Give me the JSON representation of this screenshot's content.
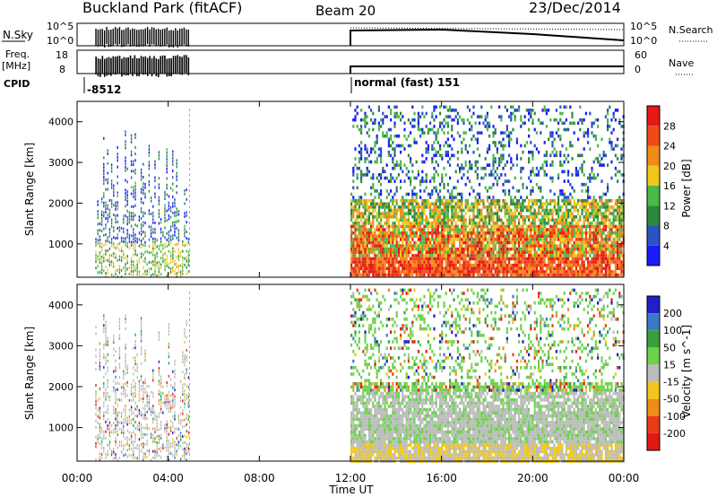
{
  "header": {
    "title": "Buckland Park (fitACF)",
    "beam": "Beam 20",
    "date": "23/Dec/2014"
  },
  "panels": {
    "nsky": {
      "left_label": "N.Sky",
      "right_label": "N.Search",
      "left_ticks": [
        "10^5",
        "10^0"
      ],
      "right_ticks": [
        "10^5",
        "10^0"
      ]
    },
    "freq": {
      "left_label": "Freq.",
      "left_unit": "[MHz]",
      "right_label": "Nave",
      "left_ticks": [
        "18",
        "8"
      ],
      "right_ticks": [
        "60",
        "0"
      ]
    },
    "cpid": {
      "label": "CPID",
      "value_1": "-8512",
      "value_2": "normal (fast) 151"
    }
  },
  "chart_data": [
    {
      "type": "heatmap",
      "quantity": "Power",
      "ylabel": "Slant Range [km]",
      "xlabel": "Time UT",
      "xticks": [
        "00:00",
        "04:00",
        "08:00",
        "12:00",
        "16:00",
        "20:00",
        "00:00"
      ],
      "xlim_hours": [
        0,
        24
      ],
      "yticks": [
        1000,
        2000,
        3000,
        4000
      ],
      "ylim": [
        180,
        4500
      ],
      "colorbar": {
        "label": "Power [dB]",
        "ticks": [
          "4",
          "8",
          "12",
          "16",
          "20",
          "24",
          "28"
        ],
        "colors": [
          "#1a1aff",
          "#2c52c4",
          "#2a8a3c",
          "#4cb848",
          "#f0c81c",
          "#f28a18",
          "#f04a18",
          "#e81818"
        ]
      },
      "data_intervals_hours": [
        [
          0.8,
          4.9
        ],
        [
          12.0,
          24.0
        ]
      ],
      "gap_hours": [
        4.9,
        12.0
      ]
    },
    {
      "type": "heatmap",
      "quantity": "Velocity",
      "ylabel": "Slant Range [km]",
      "xlabel": "Time UT",
      "xticks": [
        "00:00",
        "04:00",
        "08:00",
        "12:00",
        "16:00",
        "20:00",
        "00:00"
      ],
      "xlim_hours": [
        0,
        24
      ],
      "yticks": [
        1000,
        2000,
        3000,
        4000
      ],
      "ylim": [
        180,
        4500
      ],
      "colorbar": {
        "label": "Velocity [m s^-1]",
        "ticks": [
          "200",
          "100",
          "50",
          "15",
          "-15",
          "-50",
          "-100",
          "-200"
        ],
        "colors": [
          "#2020c8",
          "#3c7ac8",
          "#38a038",
          "#6cd24c",
          "#bcbcbc",
          "#f0c81c",
          "#f08c18",
          "#e83c18",
          "#e01818"
        ]
      },
      "data_intervals_hours": [
        [
          0.8,
          4.9
        ],
        [
          12.0,
          24.0
        ]
      ],
      "gap_hours": [
        4.9,
        12.0
      ]
    }
  ]
}
